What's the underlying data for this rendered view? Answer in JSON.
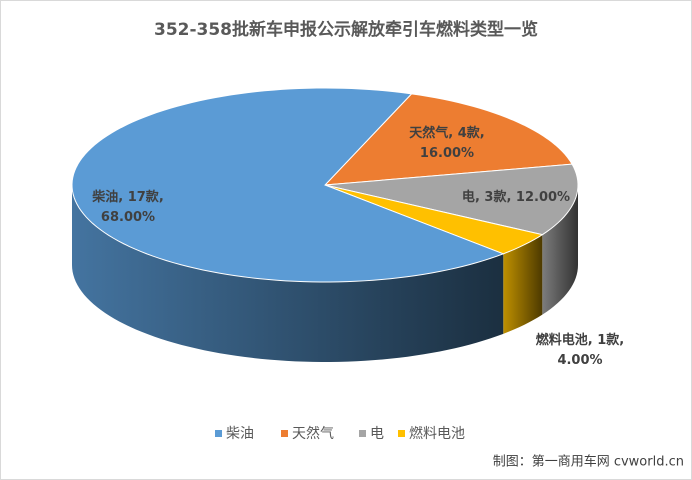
{
  "chart_data": {
    "type": "pie3d",
    "title": "352-358批新车申报公示解放牵引车燃料类型一览",
    "categories": [
      "柴油",
      "天然气",
      "电",
      "燃料电池"
    ],
    "values": [
      17,
      4,
      3,
      1
    ],
    "value_labels": [
      "17款",
      "4款",
      "3款",
      "1款"
    ],
    "percentages": [
      68,
      16,
      12,
      4
    ],
    "percentage_labels": [
      "68.00%",
      "16.00%",
      "12.00%",
      "4.00%"
    ],
    "colors": [
      "#5b9bd5",
      "#ed7d31",
      "#a5a5a5",
      "#ffc000"
    ],
    "legend": "bottom",
    "source": "制图：第一商用车网 cvworld.cn"
  }
}
